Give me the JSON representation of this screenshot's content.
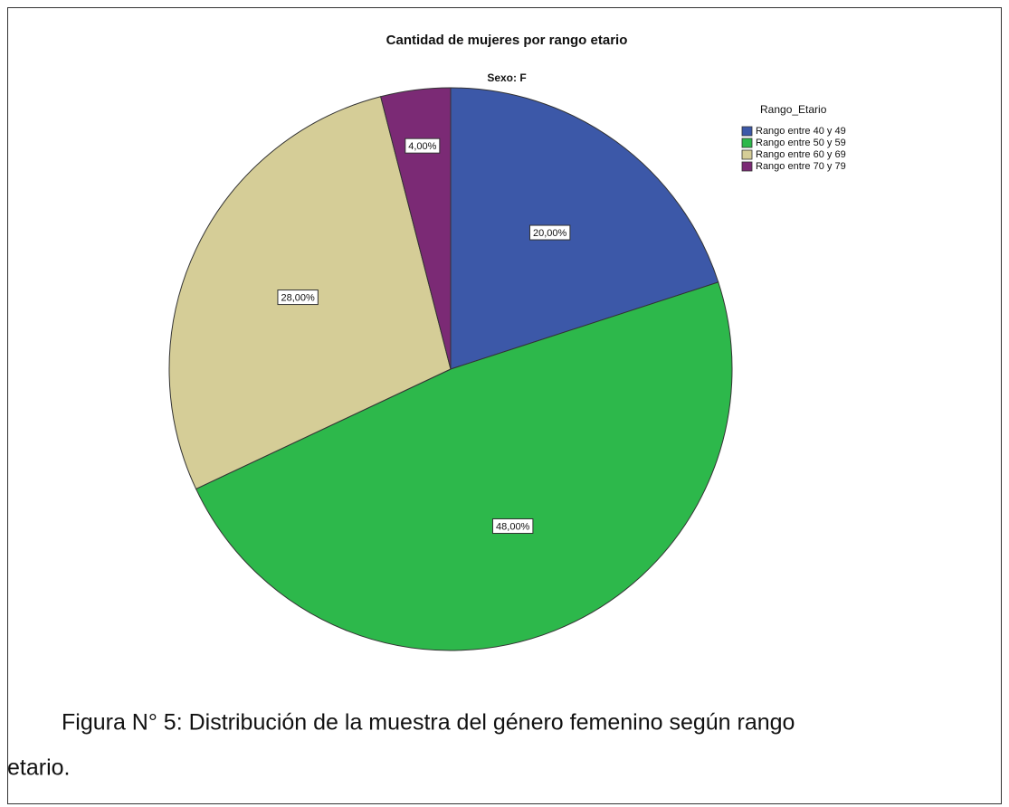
{
  "chart_data": {
    "type": "pie",
    "title": "Cantidad de mujeres por rango etario",
    "subtitle": "Sexo: F",
    "legend_title": "Rango_Etario",
    "legend": "upper right",
    "categories": [
      "Rango entre 40 y 49",
      "Rango entre 50 y 59",
      "Rango entre 60 y 69",
      "Rango entre 70 y 79"
    ],
    "values": [
      20,
      48,
      28,
      4
    ],
    "value_labels": [
      "20,00%",
      "48,00%",
      "28,00%",
      "4,00%"
    ],
    "colors": [
      "#3c58a8",
      "#2db84b",
      "#d5cd97",
      "#7b2a75"
    ]
  },
  "caption": {
    "line1": "Figura N° 5: Distribución de la muestra del género femenino según rango",
    "line2": "etario."
  }
}
